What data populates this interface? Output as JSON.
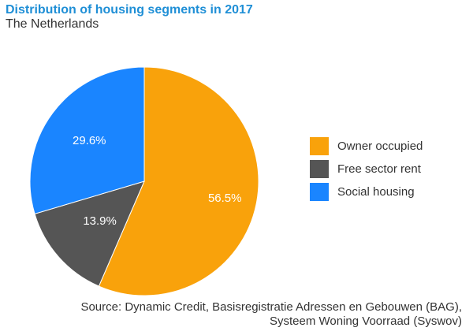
{
  "header": {
    "title": "Distribution of housing segments in 2017",
    "subtitle": "The Netherlands"
  },
  "chart_data": {
    "type": "pie",
    "title": "Distribution of housing segments in 2017",
    "subtitle": "The Netherlands",
    "categories": [
      "Owner occupied",
      "Free sector rent",
      "Social housing"
    ],
    "values": [
      56.5,
      13.9,
      29.6
    ],
    "labels": [
      "56.5%",
      "13.9%",
      "29.6%"
    ],
    "colors": [
      "#f9a20b",
      "#555555",
      "#1a85ff"
    ],
    "legend_position": "right",
    "start_angle": "12 o'clock",
    "direction": "clockwise"
  },
  "legend": {
    "items": [
      {
        "label": "Owner occupied",
        "color": "#f9a20b"
      },
      {
        "label": "Free sector rent",
        "color": "#555555"
      },
      {
        "label": "Social housing",
        "color": "#1a85ff"
      }
    ]
  },
  "source": {
    "line1": "Source: Dynamic Credit, Basisregistratie Adressen en Gebouwen (BAG),",
    "line2": "Systeem Woning Voorraad (Syswov)"
  }
}
